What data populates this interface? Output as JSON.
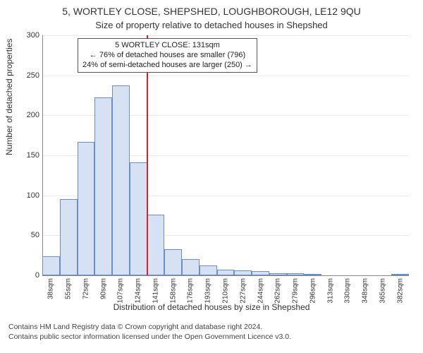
{
  "title": "5, WORTLEY CLOSE, SHEPSHED, LOUGHBOROUGH, LE12 9QU",
  "subtitle": "Size of property relative to detached houses in Shepshed",
  "y_axis_label": "Number of detached properties",
  "x_axis_label": "Distribution of detached houses by size in Shepshed",
  "footer_line1": "Contains HM Land Registry data © Crown copyright and database right 2024.",
  "footer_line2": "Contains public sector information licensed under the Open Government Licence v3.0.",
  "chart": {
    "type": "histogram",
    "background_color": "#ffffff",
    "bar_color": "#d6e2f3",
    "bar_border_color": "#6a8fc7",
    "grid_color": "#e5e5e5",
    "axis_color": "#888888",
    "tick_font_size": 10,
    "label_font_size": 12,
    "title_font_size": 14,
    "y_min": 0,
    "y_max": 300,
    "y_tick_step": 50,
    "x_labels": [
      "38sqm",
      "55sqm",
      "72sqm",
      "90sqm",
      "107sqm",
      "124sqm",
      "141sqm",
      "158sqm",
      "176sqm",
      "193sqm",
      "210sqm",
      "227sqm",
      "244sqm",
      "262sqm",
      "279sqm",
      "296sqm",
      "313sqm",
      "330sqm",
      "348sqm",
      "365sqm",
      "382sqm"
    ],
    "values": [
      24,
      95,
      167,
      222,
      237,
      141,
      76,
      33,
      20,
      12,
      7,
      6,
      5,
      3,
      3,
      2,
      0,
      0,
      0,
      0,
      2
    ],
    "vline": {
      "x_value_sqm": 131,
      "x_min_sqm": 38,
      "x_step_sqm": 17,
      "color": "#e02020",
      "width": 2
    },
    "annotation": {
      "line1": "5 WORTLEY CLOSE: 131sqm",
      "line2": "← 76% of detached houses are smaller (796)",
      "line3": "24% of semi-detached houses are larger (250) →",
      "border_color": "#555555",
      "background": "#ffffff",
      "font_size": 11
    }
  }
}
